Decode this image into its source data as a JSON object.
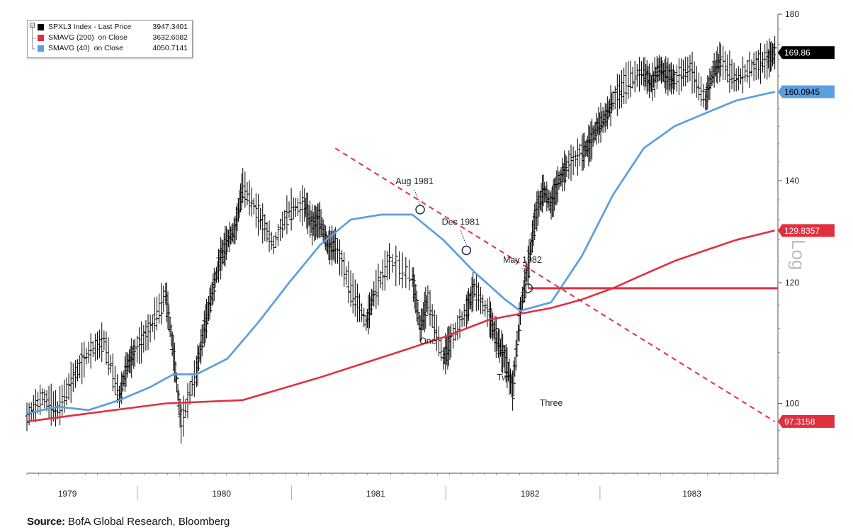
{
  "chart_data": {
    "type": "line",
    "y_scale": "log",
    "ylim": [
      90,
      180
    ],
    "y_ticks": [
      100,
      120,
      140,
      180
    ],
    "x_labels": [
      "1979",
      "1980",
      "1981",
      "1982",
      "1983"
    ],
    "legend": [
      {
        "name": "SPXL3 Index - Last Price",
        "value": "3947.3401",
        "color": "#000000"
      },
      {
        "name": "SMAVG (200)  on Close",
        "value": "3632.6082",
        "color": "#e03040"
      },
      {
        "name": "SMAVG (40)  on Close",
        "value": "4050.7141",
        "color": "#5b9ee0"
      }
    ],
    "series": [
      {
        "name": "SPXL3 Index - Last Price",
        "color": "#000000",
        "x": [
          1978.6,
          1978.7,
          1978.8,
          1978.9,
          1979.0,
          1979.1,
          1979.2,
          1979.25,
          1979.3,
          1979.4,
          1979.5,
          1979.55,
          1979.6,
          1979.7,
          1979.75,
          1979.8,
          1979.85,
          1979.9,
          1979.95,
          1980.0,
          1980.1,
          1980.2,
          1980.3,
          1980.4,
          1980.45,
          1980.5,
          1980.55,
          1980.6,
          1980.7,
          1980.8,
          1980.85,
          1980.95,
          1981.1,
          1981.15,
          1981.2,
          1981.3,
          1981.35,
          1981.45,
          1981.5,
          1981.6,
          1981.65,
          1981.7,
          1981.75,
          1981.8,
          1981.85,
          1981.9,
          1981.95,
          1982.0,
          1982.05,
          1982.1,
          1982.2,
          1982.25,
          1982.3,
          1982.35,
          1982.4,
          1982.5,
          1982.6,
          1982.65,
          1982.7,
          1982.75,
          1982.8,
          1982.9,
          1983.0,
          1983.05,
          1983.1,
          1983.2,
          1983.3,
          1983.4,
          1983.45
        ],
        "y": [
          98,
          101,
          99,
          104,
          108,
          110,
          101,
          106,
          108,
          112,
          118,
          108,
          97,
          105,
          112,
          118,
          124,
          128,
          130,
          139,
          133,
          127,
          134,
          135,
          131,
          132,
          127,
          127,
          119,
          113,
          118,
          124,
          121,
          112,
          117,
          107,
          110,
          115,
          119,
          114,
          110,
          107,
          102,
          115,
          123,
          133,
          138,
          135,
          140,
          143,
          146,
          148,
          152,
          154,
          158,
          163,
          165,
          162,
          166,
          164,
          163,
          166,
          158,
          165,
          168,
          163,
          166,
          168,
          169.86
        ]
      },
      {
        "name": "SMAVG (40) on Close",
        "color": "#5b9ee0",
        "x": [
          1978.6,
          1978.8,
          1979.0,
          1979.2,
          1979.4,
          1979.55,
          1979.7,
          1979.9,
          1980.1,
          1980.3,
          1980.5,
          1980.7,
          1980.9,
          1981.1,
          1981.3,
          1981.5,
          1981.7,
          1981.8,
          1982.0,
          1982.2,
          1982.4,
          1982.6,
          1982.8,
          1983.0,
          1983.2,
          1983.45
        ],
        "y": [
          98.5,
          99.5,
          99,
          100.5,
          102.5,
          104.5,
          104.5,
          107,
          113,
          120,
          127,
          132,
          133,
          133,
          128,
          122,
          117,
          115,
          116.5,
          125,
          137,
          147,
          152,
          155,
          158,
          160.09
        ]
      },
      {
        "name": "SMAVG (200) on Close",
        "color": "#e03040",
        "x": [
          1978.6,
          1979.0,
          1979.5,
          1980.0,
          1980.5,
          1981.0,
          1981.3,
          1981.6,
          1981.8,
          1982.0,
          1982.2,
          1982.4,
          1982.6,
          1982.8,
          1983.0,
          1983.2,
          1983.45
        ],
        "y": [
          97.3,
          98.5,
          100,
          100.5,
          104,
          108,
          110.5,
          113.5,
          114.5,
          115.5,
          117,
          119,
          121.5,
          124,
          126,
          128,
          129.84
        ]
      }
    ],
    "right_labels": [
      {
        "text": "169.86",
        "value": 169.86,
        "bg": "#000000",
        "fg": "#ffffff"
      },
      {
        "text": "160.0945",
        "value": 160.0945,
        "bg": "#5b9ee0",
        "fg": "#000000"
      },
      {
        "text": "129.8357",
        "value": 129.8357,
        "bg": "#e03040",
        "fg": "#ffffff"
      },
      {
        "text": "97.3158",
        "value": 97.3158,
        "bg": "#e03040",
        "fg": "#ffffff"
      }
    ],
    "annotations": [
      {
        "text": "Aug 1981",
        "x": 1981.15,
        "y": 134
      },
      {
        "text": "Dec 1981",
        "x": 1981.45,
        "y": 126
      },
      {
        "text": "May 1982",
        "x": 1981.85,
        "y": 119
      },
      {
        "text": "One",
        "x": 1981.2,
        "y": 112
      },
      {
        "text": "Two",
        "x": 1981.7,
        "y": 106
      },
      {
        "text": "Three",
        "x": 1982.0,
        "y": 102
      }
    ],
    "trendline": {
      "x": [
        1980.6,
        1983.45
      ],
      "y": [
        147,
        97.3
      ],
      "color": "#e03040",
      "dashed": true
    },
    "horizontal_line": {
      "y": 119,
      "x_start": 1981.85,
      "color": "#e03040"
    },
    "axis_side_label": "Log"
  },
  "source": {
    "label": "Source:",
    "text": "BofA Global Research, Bloomberg"
  }
}
